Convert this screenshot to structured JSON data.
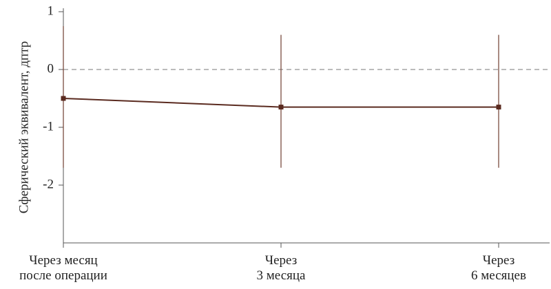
{
  "chart_data": {
    "type": "line",
    "y_label": "Сферический эквивалент, дптр",
    "categories": [
      "Через месяц\nпосле операции",
      "Через\n3 месяца",
      "Через\n6 месяцев"
    ],
    "series": [
      {
        "color": "#5a2a1f",
        "values": [
          -0.5,
          -0.65,
          -0.65
        ]
      }
    ],
    "ci_low": [
      -1.7,
      -1.7,
      -1.7
    ],
    "ci_high": [
      0.75,
      0.6,
      0.6
    ],
    "error_color": "#7a4a3e",
    "reference_line": 0,
    "ylim": [
      -3,
      1
    ],
    "yticks": [
      -2,
      -1,
      0,
      1
    ]
  }
}
